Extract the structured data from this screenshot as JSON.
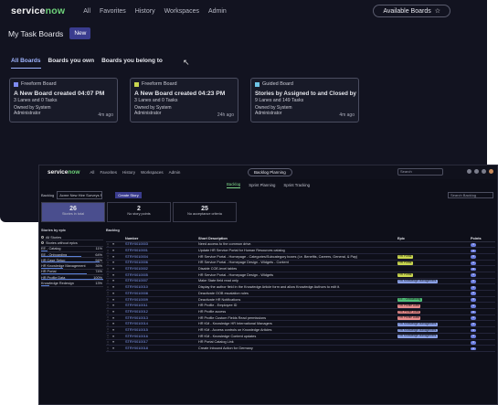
{
  "top_window": {
    "logo": {
      "a": "service",
      "b": "now"
    },
    "nav": [
      "All",
      "Favorites",
      "History",
      "Workspaces",
      "Admin"
    ],
    "available_boards": "Available Boards",
    "page_title": "My Task Boards",
    "new_button": "New",
    "tabs": [
      "All Boards",
      "Boards you own",
      "Boards you belong to"
    ],
    "cards": [
      {
        "type": "Freeform Board",
        "type_color": "#7f8cf2",
        "title": "A New Board created 04:07 PM",
        "meta": "3 Lanes and 0 Tasks",
        "owner": "Owned by System Administrator",
        "ago": "4m ago"
      },
      {
        "type": "Freeform Board",
        "type_color": "#c9d64f",
        "title": "A New Board created 04:23 PM",
        "meta": "3 Lanes and 0 Tasks",
        "owner": "Owned by System Administrator",
        "ago": "24h ago"
      },
      {
        "type": "Guided Board",
        "type_color": "#6ec4e6",
        "title": "Stories by Assigned to and Closed by",
        "meta": "9 Lanes and 149 Tasks",
        "owner": "Owned by System Administrator",
        "ago": "4m ago"
      }
    ]
  },
  "bottom_window": {
    "logo": {
      "a": "service",
      "b": "now"
    },
    "nav": [
      "All",
      "Favorites",
      "History",
      "Workspaces",
      "Admin"
    ],
    "center_chip": "Backlog Planning",
    "search_placeholder": "Search",
    "subtabs": [
      "Backlog",
      "Sprint Planning",
      "Sprint Tracking"
    ],
    "toolbar": {
      "backlog_label": "Backlog",
      "backlog_value": "Acme New Hire Surveys P...",
      "create_story": "Create Story",
      "search_backlog": "Search Backlog"
    },
    "stats": [
      {
        "n": "26",
        "l": "Stories in total"
      },
      {
        "n": "2",
        "l": "No story points"
      },
      {
        "n": "25",
        "l": "No acceptance criteria"
      }
    ],
    "epics_title": "Stories by epic",
    "epics": [
      {
        "name": "All Stories",
        "pct": "",
        "fill": 0
      },
      {
        "name": "Stories without epics",
        "pct": "",
        "fill": 0
      },
      {
        "name": "EE - Catalog",
        "pct": "11%",
        "fill": 0.11
      },
      {
        "name": "EE - Onboarding",
        "pct": "64%",
        "fill": 0.64
      },
      {
        "name": "HR Case Setup",
        "pct": "94%",
        "fill": 0.94
      },
      {
        "name": "HR Knowledge Management",
        "pct": "36%",
        "fill": 0.36
      },
      {
        "name": "HR Portal",
        "pct": "74%",
        "fill": 0.74
      },
      {
        "name": "HR Profile Data",
        "pct": "100%",
        "fill": 1.0
      },
      {
        "name": "Knowledge Redesign",
        "pct": "13%",
        "fill": 0.13
      }
    ],
    "grid_title": "Backlog",
    "columns": [
      "Number",
      "Short Description",
      "Epic",
      "Points"
    ],
    "rows": [
      {
        "num": "STRY0010003",
        "desc": "Need access to the common drive.",
        "epic": "",
        "pts": "4"
      },
      {
        "num": "STRY0010001",
        "desc": "Update HR Service Portal for Human Resources catalog",
        "epic": "",
        "pts": "4"
      },
      {
        "num": "STRY0010004",
        "desc": "HR Service Portal - Homepage - Categories/Subcategory boxes (i.e. Benefits, Careers, General, & Pay)",
        "epic": "HR Portal",
        "pts": "4"
      },
      {
        "num": "STRY0010006",
        "desc": "HR Service Portal - Homepage Design - Widgets - Content",
        "epic": "HR Portal",
        "pts": "4"
      },
      {
        "num": "STRY0010002",
        "desc": "Disable COE-level tables",
        "epic": "",
        "pts": "4"
      },
      {
        "num": "STRY0010005",
        "desc": "HR Service Portal - Homepage Design - Widgets",
        "epic": "HR Portal",
        "pts": "4"
      },
      {
        "num": "STRY0010007",
        "desc": "Make State field read only",
        "epic": "HR Knowledge Management",
        "pts": "4"
      },
      {
        "num": "STRY0010010",
        "desc": "Display the author field in the Knowledge Article form and allow Knowledge Authors to edit it.",
        "epic": "",
        "pts": "4"
      },
      {
        "num": "STRY0010008",
        "desc": "Deactivate OOB escalation rules",
        "epic": "",
        "pts": "4"
      },
      {
        "num": "STRY0010009",
        "desc": "Deactivate HR Notifications",
        "epic": "EE - Onboarding",
        "pts": "4"
      },
      {
        "num": "STRY0010011",
        "desc": "HR Profile - Employee ID",
        "epic": "HR Profile Data",
        "pts": "4"
      },
      {
        "num": "STRY0010012",
        "desc": "HR Profile access",
        "epic": "HR Profile Data",
        "pts": "4"
      },
      {
        "num": "STRY0010013",
        "desc": "HR Profile Custom Fields Read permissions",
        "epic": "HR Profile Data",
        "pts": "4"
      },
      {
        "num": "STRY0010014",
        "desc": "HR KM - Knowledge HR International Managers",
        "epic": "HR Knowledge Management",
        "pts": "4"
      },
      {
        "num": "STRY0010015",
        "desc": "HR KM - Access controls on Knowledge Articles",
        "epic": "HR Knowledge Management",
        "pts": "4"
      },
      {
        "num": "STRY0010016",
        "desc": "HR KM - Knowledge Content updates",
        "epic": "HR Knowledge Management",
        "pts": "4"
      },
      {
        "num": "STRY0010017",
        "desc": "HR Portal Catalog Link",
        "epic": "",
        "pts": "4"
      },
      {
        "num": "STRY0010018",
        "desc": "Create Inbound Action for Germany",
        "epic": "",
        "pts": "4"
      }
    ],
    "epic_colors": {
      "HR Portal": "#c9d64f",
      "HR Knowledge Management": "#8aa0e6",
      "EE - Onboarding": "#4fbf77",
      "HR Profile Data": "#e68a8a"
    }
  }
}
